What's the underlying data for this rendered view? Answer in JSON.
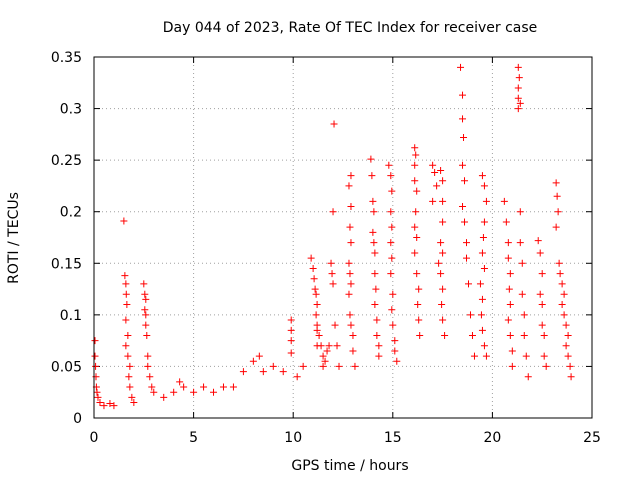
{
  "chart_data": {
    "type": "scatter",
    "title": "Day 044 of 2023, Rate Of TEC Index for receiver case",
    "xlabel": "GPS time / hours",
    "ylabel": "ROTI / TECUs",
    "xlim": [
      0,
      25
    ],
    "ylim": [
      0,
      0.35
    ],
    "x_ticks": [
      0,
      5,
      10,
      15,
      20,
      25
    ],
    "x_tick_labels": [
      "0",
      "5",
      "10",
      "15",
      "20",
      "25"
    ],
    "y_ticks": [
      0,
      0.05,
      0.1,
      0.15,
      0.2,
      0.25,
      0.3,
      0.35
    ],
    "y_tick_labels": [
      "0",
      "0.05",
      "0.1",
      "0.15",
      "0.2",
      "0.25",
      "0.3",
      "0.35"
    ],
    "grid": true,
    "marker": "plus",
    "marker_color": "#ff0000",
    "series": [
      {
        "name": "ROTI",
        "points": [
          [
            0.05,
            0.075
          ],
          [
            0.05,
            0.06
          ],
          [
            0.08,
            0.05
          ],
          [
            0.1,
            0.04
          ],
          [
            0.12,
            0.03
          ],
          [
            0.15,
            0.025
          ],
          [
            0.2,
            0.02
          ],
          [
            0.3,
            0.015
          ],
          [
            0.5,
            0.012
          ],
          [
            0.8,
            0.014
          ],
          [
            1.0,
            0.012
          ],
          [
            1.5,
            0.191
          ],
          [
            1.55,
            0.138
          ],
          [
            1.6,
            0.13
          ],
          [
            1.62,
            0.12
          ],
          [
            1.65,
            0.11
          ],
          [
            1.6,
            0.095
          ],
          [
            1.7,
            0.08
          ],
          [
            1.6,
            0.07
          ],
          [
            1.7,
            0.06
          ],
          [
            1.8,
            0.05
          ],
          [
            1.75,
            0.04
          ],
          [
            1.8,
            0.03
          ],
          [
            1.9,
            0.02
          ],
          [
            2.0,
            0.015
          ],
          [
            2.5,
            0.13
          ],
          [
            2.55,
            0.12
          ],
          [
            2.6,
            0.115
          ],
          [
            2.55,
            0.105
          ],
          [
            2.6,
            0.1
          ],
          [
            2.6,
            0.09
          ],
          [
            2.65,
            0.08
          ],
          [
            2.7,
            0.06
          ],
          [
            2.7,
            0.05
          ],
          [
            2.8,
            0.04
          ],
          [
            2.9,
            0.03
          ],
          [
            3.0,
            0.025
          ],
          [
            3.5,
            0.02
          ],
          [
            4.0,
            0.025
          ],
          [
            4.3,
            0.035
          ],
          [
            4.5,
            0.03
          ],
          [
            5.0,
            0.025
          ],
          [
            5.5,
            0.03
          ],
          [
            6.0,
            0.025
          ],
          [
            6.5,
            0.03
          ],
          [
            7.0,
            0.03
          ],
          [
            7.5,
            0.045
          ],
          [
            8.0,
            0.055
          ],
          [
            8.3,
            0.06
          ],
          [
            8.5,
            0.045
          ],
          [
            9.0,
            0.05
          ],
          [
            9.5,
            0.045
          ],
          [
            9.9,
            0.095
          ],
          [
            9.9,
            0.085
          ],
          [
            9.9,
            0.075
          ],
          [
            9.9,
            0.063
          ],
          [
            10.2,
            0.04
          ],
          [
            10.5,
            0.05
          ],
          [
            10.9,
            0.155
          ],
          [
            11.0,
            0.145
          ],
          [
            11.05,
            0.135
          ],
          [
            11.1,
            0.125
          ],
          [
            11.15,
            0.12
          ],
          [
            11.2,
            0.11
          ],
          [
            11.15,
            0.1
          ],
          [
            11.2,
            0.09
          ],
          [
            11.2,
            0.085
          ],
          [
            11.3,
            0.08
          ],
          [
            11.2,
            0.07
          ],
          [
            11.4,
            0.07
          ],
          [
            11.5,
            0.06
          ],
          [
            11.6,
            0.055
          ],
          [
            11.5,
            0.05
          ],
          [
            11.7,
            0.065
          ],
          [
            11.8,
            0.07
          ],
          [
            11.9,
            0.15
          ],
          [
            11.95,
            0.14
          ],
          [
            12.0,
            0.13
          ],
          [
            12.05,
            0.285
          ],
          [
            12.0,
            0.2
          ],
          [
            12.1,
            0.09
          ],
          [
            12.2,
            0.07
          ],
          [
            12.3,
            0.05
          ],
          [
            12.9,
            0.235
          ],
          [
            12.8,
            0.225
          ],
          [
            12.9,
            0.205
          ],
          [
            12.85,
            0.185
          ],
          [
            12.9,
            0.17
          ],
          [
            12.8,
            0.15
          ],
          [
            12.85,
            0.14
          ],
          [
            12.9,
            0.13
          ],
          [
            12.8,
            0.12
          ],
          [
            12.85,
            0.1
          ],
          [
            12.9,
            0.09
          ],
          [
            13.0,
            0.08
          ],
          [
            13.0,
            0.065
          ],
          [
            13.1,
            0.05
          ],
          [
            13.9,
            0.251
          ],
          [
            13.95,
            0.235
          ],
          [
            14.0,
            0.21
          ],
          [
            14.05,
            0.2
          ],
          [
            14.0,
            0.18
          ],
          [
            14.05,
            0.17
          ],
          [
            14.1,
            0.16
          ],
          [
            14.1,
            0.14
          ],
          [
            14.15,
            0.125
          ],
          [
            14.1,
            0.11
          ],
          [
            14.2,
            0.095
          ],
          [
            14.2,
            0.08
          ],
          [
            14.3,
            0.07
          ],
          [
            14.3,
            0.06
          ],
          [
            14.8,
            0.245
          ],
          [
            14.9,
            0.235
          ],
          [
            14.95,
            0.22
          ],
          [
            14.9,
            0.2
          ],
          [
            14.95,
            0.185
          ],
          [
            14.9,
            0.17
          ],
          [
            14.95,
            0.155
          ],
          [
            14.9,
            0.14
          ],
          [
            15.0,
            0.12
          ],
          [
            14.95,
            0.105
          ],
          [
            15.0,
            0.09
          ],
          [
            15.1,
            0.075
          ],
          [
            15.1,
            0.065
          ],
          [
            15.2,
            0.055
          ],
          [
            16.1,
            0.262
          ],
          [
            16.15,
            0.255
          ],
          [
            16.1,
            0.245
          ],
          [
            16.1,
            0.23
          ],
          [
            16.2,
            0.22
          ],
          [
            16.15,
            0.2
          ],
          [
            16.1,
            0.185
          ],
          [
            16.2,
            0.175
          ],
          [
            16.1,
            0.16
          ],
          [
            16.2,
            0.14
          ],
          [
            16.3,
            0.125
          ],
          [
            16.25,
            0.11
          ],
          [
            16.3,
            0.095
          ],
          [
            16.35,
            0.08
          ],
          [
            17.0,
            0.245
          ],
          [
            17.1,
            0.238
          ],
          [
            17.2,
            0.225
          ],
          [
            17.0,
            0.21
          ],
          [
            17.4,
            0.24
          ],
          [
            17.5,
            0.23
          ],
          [
            17.5,
            0.21
          ],
          [
            17.5,
            0.19
          ],
          [
            17.4,
            0.17
          ],
          [
            17.5,
            0.16
          ],
          [
            17.3,
            0.15
          ],
          [
            17.4,
            0.14
          ],
          [
            17.5,
            0.125
          ],
          [
            17.45,
            0.11
          ],
          [
            17.5,
            0.095
          ],
          [
            17.6,
            0.08
          ],
          [
            18.4,
            0.34
          ],
          [
            18.5,
            0.313
          ],
          [
            18.5,
            0.29
          ],
          [
            18.55,
            0.272
          ],
          [
            18.5,
            0.245
          ],
          [
            18.6,
            0.23
          ],
          [
            18.5,
            0.205
          ],
          [
            18.6,
            0.19
          ],
          [
            18.7,
            0.17
          ],
          [
            18.7,
            0.155
          ],
          [
            18.8,
            0.13
          ],
          [
            18.9,
            0.1
          ],
          [
            19.0,
            0.08
          ],
          [
            19.1,
            0.06
          ],
          [
            19.5,
            0.235
          ],
          [
            19.6,
            0.225
          ],
          [
            19.7,
            0.21
          ],
          [
            19.6,
            0.19
          ],
          [
            19.55,
            0.175
          ],
          [
            19.5,
            0.16
          ],
          [
            19.6,
            0.145
          ],
          [
            19.4,
            0.13
          ],
          [
            19.5,
            0.115
          ],
          [
            19.45,
            0.1
          ],
          [
            19.5,
            0.085
          ],
          [
            19.6,
            0.07
          ],
          [
            19.7,
            0.06
          ],
          [
            20.6,
            0.21
          ],
          [
            20.7,
            0.19
          ],
          [
            20.8,
            0.17
          ],
          [
            20.8,
            0.155
          ],
          [
            20.9,
            0.14
          ],
          [
            20.85,
            0.125
          ],
          [
            20.9,
            0.11
          ],
          [
            20.8,
            0.095
          ],
          [
            20.9,
            0.08
          ],
          [
            21.0,
            0.065
          ],
          [
            21.0,
            0.05
          ],
          [
            21.3,
            0.34
          ],
          [
            21.35,
            0.33
          ],
          [
            21.3,
            0.32
          ],
          [
            21.3,
            0.31
          ],
          [
            21.4,
            0.305
          ],
          [
            21.3,
            0.3
          ],
          [
            21.4,
            0.2
          ],
          [
            21.4,
            0.17
          ],
          [
            21.5,
            0.15
          ],
          [
            21.5,
            0.12
          ],
          [
            21.6,
            0.1
          ],
          [
            21.6,
            0.08
          ],
          [
            21.7,
            0.06
          ],
          [
            21.8,
            0.04
          ],
          [
            22.3,
            0.172
          ],
          [
            22.4,
            0.16
          ],
          [
            22.5,
            0.14
          ],
          [
            22.4,
            0.12
          ],
          [
            22.5,
            0.11
          ],
          [
            22.5,
            0.09
          ],
          [
            22.6,
            0.08
          ],
          [
            22.6,
            0.06
          ],
          [
            22.7,
            0.05
          ],
          [
            23.2,
            0.228
          ],
          [
            23.25,
            0.215
          ],
          [
            23.3,
            0.2
          ],
          [
            23.2,
            0.185
          ],
          [
            23.35,
            0.15
          ],
          [
            23.4,
            0.14
          ],
          [
            23.5,
            0.13
          ],
          [
            23.6,
            0.12
          ],
          [
            23.5,
            0.11
          ],
          [
            23.6,
            0.1
          ],
          [
            23.7,
            0.09
          ],
          [
            23.8,
            0.08
          ],
          [
            23.7,
            0.07
          ],
          [
            23.8,
            0.06
          ],
          [
            23.9,
            0.05
          ],
          [
            23.95,
            0.04
          ]
        ]
      }
    ]
  }
}
